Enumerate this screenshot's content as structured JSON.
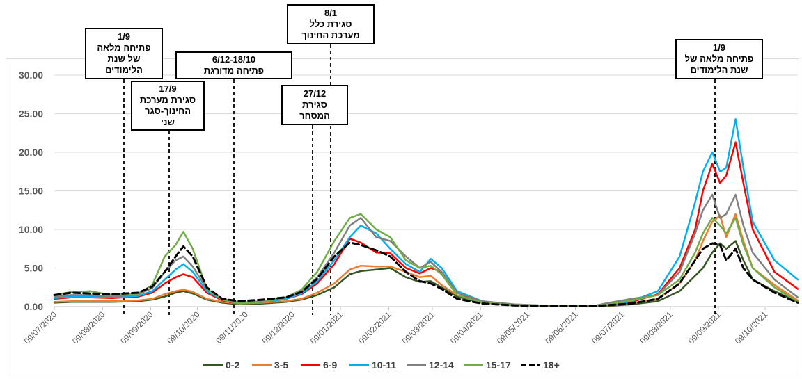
{
  "chart_data": {
    "type": "line",
    "title": "",
    "xlabel": "",
    "ylabel": "",
    "ylim": [
      0,
      30
    ],
    "yticks": [
      "0.00",
      "5.00",
      "10.00",
      "15.00",
      "20.00",
      "25.00",
      "30.00"
    ],
    "xlim": [
      "2020-07-09",
      "2021-10-30"
    ],
    "xticks": [
      "09/07/2020",
      "09/08/2020",
      "09/09/2020",
      "09/10/2020",
      "09/11/2020",
      "09/12/2020",
      "09/01/2021",
      "09/02/2021",
      "09/03/2021",
      "09/04/2021",
      "09/05/2021",
      "09/06/2021",
      "09/07/2021",
      "09/08/2021",
      "09/09/2021",
      "09/10/2021"
    ],
    "grid": "horizontal",
    "legend_position": "bottom",
    "x": [
      "2020-07-09",
      "2020-07-20",
      "2020-08-01",
      "2020-08-15",
      "2020-09-01",
      "2020-09-10",
      "2020-09-18",
      "2020-09-25",
      "2020-09-30",
      "2020-10-06",
      "2020-10-15",
      "2020-10-25",
      "2020-11-05",
      "2020-11-20",
      "2020-12-05",
      "2020-12-15",
      "2020-12-25",
      "2021-01-05",
      "2021-01-15",
      "2021-01-22",
      "2021-02-01",
      "2021-02-10",
      "2021-02-20",
      "2021-03-01",
      "2021-03-08",
      "2021-03-15",
      "2021-03-25",
      "2021-04-10",
      "2021-05-01",
      "2021-06-01",
      "2021-06-20",
      "2021-07-01",
      "2021-07-15",
      "2021-08-01",
      "2021-08-15",
      "2021-08-25",
      "2021-08-30",
      "2021-09-05",
      "2021-09-10",
      "2021-09-14",
      "2021-09-20",
      "2021-09-25",
      "2021-10-01",
      "2021-10-15",
      "2021-10-30"
    ],
    "series": [
      {
        "name": "0-2",
        "color": "#375623",
        "dash": false,
        "values": [
          0.5,
          0.6,
          0.6,
          0.6,
          0.7,
          0.9,
          1.3,
          1.8,
          2.0,
          1.7,
          0.9,
          0.5,
          0.3,
          0.4,
          0.6,
          0.9,
          1.5,
          2.5,
          4.2,
          4.6,
          4.8,
          5.0,
          3.8,
          3.2,
          3.3,
          2.5,
          1.3,
          0.5,
          0.2,
          0.05,
          0.05,
          0.1,
          0.3,
          0.7,
          2.0,
          4.0,
          5.0,
          7.0,
          8.2,
          7.5,
          8.5,
          6.0,
          3.5,
          2.0,
          0.6
        ]
      },
      {
        "name": "3-5",
        "color": "#ed7d31",
        "dash": false,
        "values": [
          0.6,
          0.7,
          0.7,
          0.7,
          0.8,
          1.0,
          1.6,
          2.0,
          2.2,
          1.9,
          1.0,
          0.6,
          0.4,
          0.5,
          0.7,
          1.0,
          1.8,
          3.0,
          4.8,
          5.3,
          5.2,
          5.2,
          4.5,
          3.8,
          4.0,
          2.8,
          1.5,
          0.6,
          0.2,
          0.05,
          0.05,
          0.15,
          0.4,
          1.0,
          3.0,
          6.0,
          8.5,
          11.0,
          11.8,
          9.0,
          12.0,
          8.5,
          5.0,
          2.8,
          0.8
        ]
      },
      {
        "name": "6-9",
        "color": "#ff0000",
        "dash": false,
        "values": [
          1.0,
          1.2,
          1.2,
          1.1,
          1.3,
          1.8,
          3.0,
          3.8,
          4.2,
          3.8,
          1.8,
          0.8,
          0.4,
          0.6,
          1.0,
          1.6,
          3.0,
          5.5,
          8.8,
          8.3,
          7.0,
          6.9,
          5.0,
          4.3,
          5.0,
          4.5,
          1.8,
          0.6,
          0.2,
          0.05,
          0.05,
          0.2,
          0.6,
          1.6,
          5.0,
          10.0,
          15.0,
          18.5,
          16.0,
          17.0,
          21.3,
          16.0,
          10.0,
          4.5,
          2.3
        ]
      },
      {
        "name": "10-11",
        "color": "#00b0f0",
        "dash": false,
        "values": [
          1.1,
          1.3,
          1.3,
          1.2,
          1.4,
          2.0,
          3.5,
          4.8,
          5.5,
          4.5,
          2.0,
          0.9,
          0.4,
          0.6,
          1.0,
          1.7,
          3.3,
          6.0,
          9.0,
          10.5,
          9.5,
          7.5,
          5.5,
          4.5,
          6.2,
          5.0,
          2.0,
          0.7,
          0.25,
          0.05,
          0.05,
          0.2,
          0.7,
          2.0,
          6.5,
          13.5,
          17.5,
          20.0,
          17.5,
          18.0,
          24.3,
          18.0,
          11.0,
          6.0,
          3.5
        ]
      },
      {
        "name": "12-14",
        "color": "#808080",
        "dash": false,
        "values": [
          1.3,
          1.5,
          1.5,
          1.3,
          1.6,
          2.4,
          4.5,
          6.0,
          6.5,
          5.2,
          2.3,
          1.0,
          0.5,
          0.7,
          1.2,
          2.0,
          3.8,
          7.0,
          10.5,
          11.5,
          9.0,
          8.5,
          6.5,
          5.0,
          5.8,
          4.5,
          1.8,
          0.7,
          0.3,
          0.05,
          0.05,
          0.5,
          1.0,
          1.5,
          4.5,
          9.5,
          12.5,
          14.5,
          11.5,
          12.0,
          14.5,
          10.5,
          7.0,
          3.5,
          1.2
        ]
      },
      {
        "name": "15-17",
        "color": "#70ad47",
        "dash": false,
        "values": [
          1.5,
          1.9,
          2.0,
          1.5,
          1.7,
          2.8,
          6.5,
          8.0,
          9.7,
          7.5,
          2.3,
          0.9,
          0.4,
          0.6,
          1.2,
          2.2,
          4.5,
          8.5,
          11.5,
          12.0,
          10.0,
          9.0,
          6.0,
          5.0,
          5.3,
          4.2,
          1.5,
          0.5,
          0.2,
          0.05,
          0.05,
          0.3,
          0.8,
          1.5,
          3.5,
          7.0,
          9.5,
          11.5,
          10.5,
          9.5,
          11.5,
          8.0,
          5.0,
          2.5,
          0.6
        ]
      },
      {
        "name": "18+",
        "color": "#000000",
        "dash": true,
        "values": [
          1.5,
          1.8,
          1.7,
          1.6,
          1.8,
          2.6,
          4.5,
          6.5,
          7.8,
          6.5,
          2.5,
          1.0,
          0.7,
          0.9,
          1.2,
          1.9,
          3.6,
          6.5,
          8.3,
          8.0,
          7.3,
          6.5,
          4.5,
          3.3,
          3.0,
          2.3,
          1.0,
          0.4,
          0.15,
          0.05,
          0.05,
          0.2,
          0.4,
          1.0,
          3.0,
          6.0,
          7.5,
          8.2,
          8.0,
          6.0,
          7.5,
          5.0,
          3.5,
          1.8,
          0.5
        ]
      }
    ],
    "annotations": [
      {
        "id": "ann-1",
        "lines": [
          "1/9",
          "פתיחה מלאה",
          "של  שנת",
          "הלימודים"
        ],
        "date": "2020-09-01"
      },
      {
        "id": "ann-2",
        "lines": [
          "17/9",
          "סגירת מערכת",
          "החינוך-סגר",
          "שני"
        ],
        "date": "2020-09-17"
      },
      {
        "id": "ann-3",
        "lines": [
          "6/12-18/10",
          "פתיחה מדורגת"
        ],
        "date": "2020-11-15"
      },
      {
        "id": "ann-4",
        "lines": [
          "27/12",
          "סגירת",
          "המסחר"
        ],
        "date": "2020-12-27"
      },
      {
        "id": "ann-5",
        "lines": [
          "8/1",
          "סגירת כלל",
          "מערכת החינוך"
        ],
        "date": "2021-01-08"
      },
      {
        "id": "ann-6",
        "lines": [
          "1/9",
          "פתיחה מלאה של",
          "שנת הלימודים"
        ],
        "date": "2021-09-01"
      }
    ]
  }
}
